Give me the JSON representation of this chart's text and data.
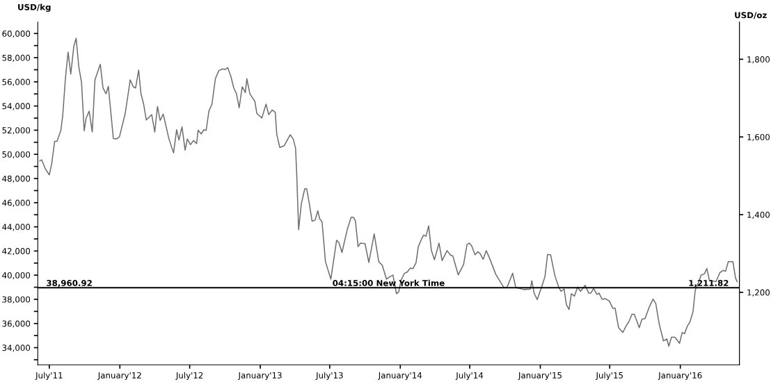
{
  "chart_data": {
    "type": "line",
    "ylabel": "USD/kg",
    "y2label": "USD/oz",
    "xlim": [
      "2011-06-01",
      "2016-06-03"
    ],
    "xticks": [
      {
        "value": "2011-07-01",
        "label": "July'11"
      },
      {
        "value": "2012-01-01",
        "label": "January'12"
      },
      {
        "value": "2012-07-01",
        "label": "July'12"
      },
      {
        "value": "2013-01-01",
        "label": "January'13"
      },
      {
        "value": "2013-07-01",
        "label": "July'13"
      },
      {
        "value": "2014-01-01",
        "label": "January'14"
      },
      {
        "value": "2014-07-01",
        "label": "July'14"
      },
      {
        "value": "2015-01-01",
        "label": "January'15"
      },
      {
        "value": "2015-07-01",
        "label": "July'15"
      },
      {
        "value": "2016-01-01",
        "label": "January'16"
      }
    ],
    "ylim": [
      32580,
      60940
    ],
    "yticks": [
      {
        "value": 33000,
        "label": null
      },
      {
        "value": 34000,
        "label": "34,000"
      },
      {
        "value": 35000,
        "label": null
      },
      {
        "value": 36000,
        "label": "36,000"
      },
      {
        "value": 37000,
        "label": null
      },
      {
        "value": 38000,
        "label": "38,000"
      },
      {
        "value": 39000,
        "label": null
      },
      {
        "value": 40000,
        "label": "40,000"
      },
      {
        "value": 41000,
        "label": null
      },
      {
        "value": 42000,
        "label": "42,000"
      },
      {
        "value": 43000,
        "label": null
      },
      {
        "value": 44000,
        "label": "44,000"
      },
      {
        "value": 45000,
        "label": null
      },
      {
        "value": 46000,
        "label": "46,000"
      },
      {
        "value": 47000,
        "label": null
      },
      {
        "value": 48000,
        "label": "48,000"
      },
      {
        "value": 49000,
        "label": null
      },
      {
        "value": 50000,
        "label": "50,000"
      },
      {
        "value": 51000,
        "label": null
      },
      {
        "value": 52000,
        "label": "52,000"
      },
      {
        "value": 53000,
        "label": null
      },
      {
        "value": 54000,
        "label": "54,000"
      },
      {
        "value": 55000,
        "label": null
      },
      {
        "value": 56000,
        "label": "56,000"
      },
      {
        "value": 57000,
        "label": null
      },
      {
        "value": 58000,
        "label": "58,000"
      },
      {
        "value": 59000,
        "label": null
      },
      {
        "value": 60000,
        "label": "60,000"
      }
    ],
    "y2lim": [
      1013.4,
      1895.5
    ],
    "y2ticks": [
      {
        "value": 1200,
        "label": "1,200"
      },
      {
        "value": 1400,
        "label": "1,400"
      },
      {
        "value": 1600,
        "label": "1,600"
      },
      {
        "value": 1800,
        "label": "1,800"
      }
    ],
    "grid": false,
    "legend": false,
    "marker": "none",
    "line_style": "solid",
    "ref_lines": [
      {
        "axis": "y",
        "value": 38960.92,
        "label": "38,960.92",
        "color": "#000000"
      }
    ],
    "annotations": [
      "04:15:00 New York Time",
      "1,211.82"
    ],
    "series": [
      {
        "color": "#6e6e6e",
        "x": [
          "2011-06-06",
          "2011-06-11",
          "2011-06-21",
          "2011-07-01",
          "2011-07-07",
          "2011-07-15",
          "2011-07-21",
          "2011-07-31",
          "2011-08-05",
          "2011-08-12",
          "2011-08-19",
          "2011-08-26",
          "2011-09-03",
          "2011-09-09",
          "2011-09-16",
          "2011-09-23",
          "2011-09-30",
          "2011-10-05",
          "2011-10-13",
          "2011-10-21",
          "2011-10-28",
          "2011-11-11",
          "2011-11-18",
          "2011-11-26",
          "2011-12-02",
          "2011-12-15",
          "2011-12-23",
          "2011-12-31",
          "2012-01-15",
          "2012-01-28",
          "2012-02-05",
          "2012-02-11",
          "2012-02-19",
          "2012-02-25",
          "2012-03-03",
          "2012-03-10",
          "2012-03-24",
          "2012-04-01",
          "2012-04-08",
          "2012-04-15",
          "2012-04-23",
          "2012-05-08",
          "2012-05-20",
          "2012-05-28",
          "2012-06-03",
          "2012-06-11",
          "2012-06-19",
          "2012-06-25",
          "2012-07-03",
          "2012-07-11",
          "2012-07-19",
          "2012-07-23",
          "2012-07-31",
          "2012-08-07",
          "2012-08-13",
          "2012-08-20",
          "2012-08-28",
          "2012-09-06",
          "2012-09-15",
          "2012-09-24",
          "2012-10-02",
          "2012-10-08",
          "2012-10-16",
          "2012-10-24",
          "2012-10-31",
          "2012-11-07",
          "2012-11-15",
          "2012-11-23",
          "2012-11-27",
          "2012-12-05",
          "2012-12-18",
          "2012-12-23",
          "2013-01-05",
          "2013-01-16",
          "2013-01-23",
          "2013-02-01",
          "2013-02-09",
          "2013-02-13",
          "2013-02-21",
          "2013-03-04",
          "2013-03-20",
          "2013-03-28",
          "2013-04-03",
          "2013-04-06",
          "2013-04-11",
          "2013-04-18",
          "2013-04-27",
          "2013-05-02",
          "2013-05-09",
          "2013-05-16",
          "2013-05-24",
          "2013-05-31",
          "2013-06-05",
          "2013-06-11",
          "2013-06-20",
          "2013-07-04",
          "2013-07-19",
          "2013-07-25",
          "2013-08-02",
          "2013-08-16",
          "2013-08-26",
          "2013-09-01",
          "2013-09-06",
          "2013-09-13",
          "2013-09-19",
          "2013-10-01",
          "2013-10-11",
          "2013-10-25",
          "2013-11-06",
          "2013-11-15",
          "2013-11-26",
          "2013-12-05",
          "2013-12-13",
          "2013-12-22",
          "2013-12-28",
          "2014-01-03",
          "2014-01-12",
          "2014-01-19",
          "2014-01-27",
          "2014-02-03",
          "2014-02-11",
          "2014-02-17",
          "2014-02-26",
          "2014-03-03",
          "2014-03-09",
          "2014-03-16",
          "2014-03-23",
          "2014-03-31",
          "2014-04-12",
          "2014-04-20",
          "2014-05-03",
          "2014-05-12",
          "2014-05-18",
          "2014-06-01",
          "2014-06-15",
          "2014-06-24",
          "2014-06-30",
          "2014-07-06",
          "2014-07-15",
          "2014-07-22",
          "2014-07-28",
          "2014-08-05",
          "2014-08-13",
          "2014-08-23",
          "2014-09-07",
          "2014-09-28",
          "2014-10-06",
          "2014-10-21",
          "2014-10-29",
          "2014-11-19",
          "2014-12-06",
          "2014-12-10",
          "2014-12-16",
          "2014-12-24",
          "2015-01-05",
          "2015-01-13",
          "2015-01-20",
          "2015-01-28",
          "2015-02-08",
          "2015-02-18",
          "2015-02-24",
          "2015-03-04",
          "2015-03-10",
          "2015-03-17",
          "2015-03-23",
          "2015-03-31",
          "2015-04-08",
          "2015-04-16",
          "2015-04-28",
          "2015-05-07",
          "2015-05-13",
          "2015-05-20",
          "2015-05-29",
          "2015-06-03",
          "2015-06-11",
          "2015-06-19",
          "2015-06-30",
          "2015-07-09",
          "2015-07-15",
          "2015-07-24",
          "2015-08-04",
          "2015-08-14",
          "2015-08-20",
          "2015-08-28",
          "2015-09-03",
          "2015-09-16",
          "2015-09-23",
          "2015-10-01",
          "2015-10-12",
          "2015-10-22",
          "2015-10-29",
          "2015-11-07",
          "2015-11-18",
          "2015-11-27",
          "2015-12-02",
          "2015-12-09",
          "2015-12-18",
          "2015-12-30",
          "2016-01-06",
          "2016-01-12",
          "2016-01-19",
          "2016-01-26",
          "2016-02-03",
          "2016-02-09",
          "2016-02-17",
          "2016-02-24",
          "2016-03-04",
          "2016-03-10",
          "2016-03-17",
          "2016-04-03",
          "2016-04-13",
          "2016-04-22",
          "2016-04-28",
          "2016-05-05",
          "2016-05-17",
          "2016-05-24",
          "2016-05-28"
        ],
        "values": [
          49450,
          49550,
          48780,
          48300,
          49160,
          51080,
          51080,
          51950,
          53190,
          56260,
          58460,
          56640,
          58940,
          59610,
          57220,
          55970,
          51950,
          53000,
          53570,
          51850,
          56160,
          57450,
          55490,
          55010,
          55630,
          51310,
          51270,
          51460,
          53390,
          56160,
          55590,
          55490,
          56970,
          55010,
          54150,
          52840,
          53290,
          51850,
          53960,
          52810,
          53330,
          51270,
          50120,
          52040,
          51180,
          52270,
          50350,
          51270,
          50800,
          51140,
          50890,
          52000,
          51690,
          52040,
          51980,
          53570,
          54150,
          56260,
          56930,
          57070,
          57030,
          57180,
          56490,
          55490,
          55010,
          53860,
          55590,
          55110,
          56260,
          55010,
          54380,
          53390,
          53000,
          54150,
          53290,
          53670,
          53480,
          51660,
          50570,
          50700,
          51620,
          51270,
          50510,
          48400,
          43760,
          45910,
          47150,
          47150,
          45910,
          44470,
          44560,
          45330,
          44650,
          44420,
          41110,
          39670,
          42890,
          42700,
          41880,
          43800,
          44790,
          44790,
          44500,
          42360,
          42650,
          42610,
          41050,
          43410,
          41110,
          40830,
          39670,
          39870,
          40000,
          38460,
          38620,
          39580,
          40160,
          40250,
          40580,
          40540,
          41020,
          42360,
          43030,
          43320,
          43220,
          44080,
          42070,
          41270,
          42650,
          41210,
          42030,
          41650,
          41590,
          40020,
          40880,
          42550,
          42650,
          42420,
          41690,
          41940,
          41780,
          41310,
          42030,
          41310,
          40060,
          38970,
          38970,
          40160,
          38970,
          38810,
          38850,
          39540,
          38500,
          37980,
          39080,
          39860,
          41720,
          41670,
          39960,
          39000,
          38660,
          38860,
          37560,
          37160,
          38460,
          38260,
          39000,
          38660,
          39160,
          38520,
          38520,
          38900,
          38400,
          38520,
          38000,
          38060,
          37860,
          37260,
          37260,
          35660,
          35260,
          35860,
          36160,
          36760,
          36760,
          35660,
          36360,
          36400,
          37360,
          38020,
          37660,
          35960,
          34560,
          34720,
          34120,
          34860,
          34860,
          34360,
          35260,
          35160,
          35760,
          36120,
          36960,
          38760,
          39360,
          40000,
          40120,
          40560,
          39560,
          39460,
          40200,
          40400,
          40320,
          41120,
          41120,
          39760,
          39460
        ]
      }
    ]
  }
}
